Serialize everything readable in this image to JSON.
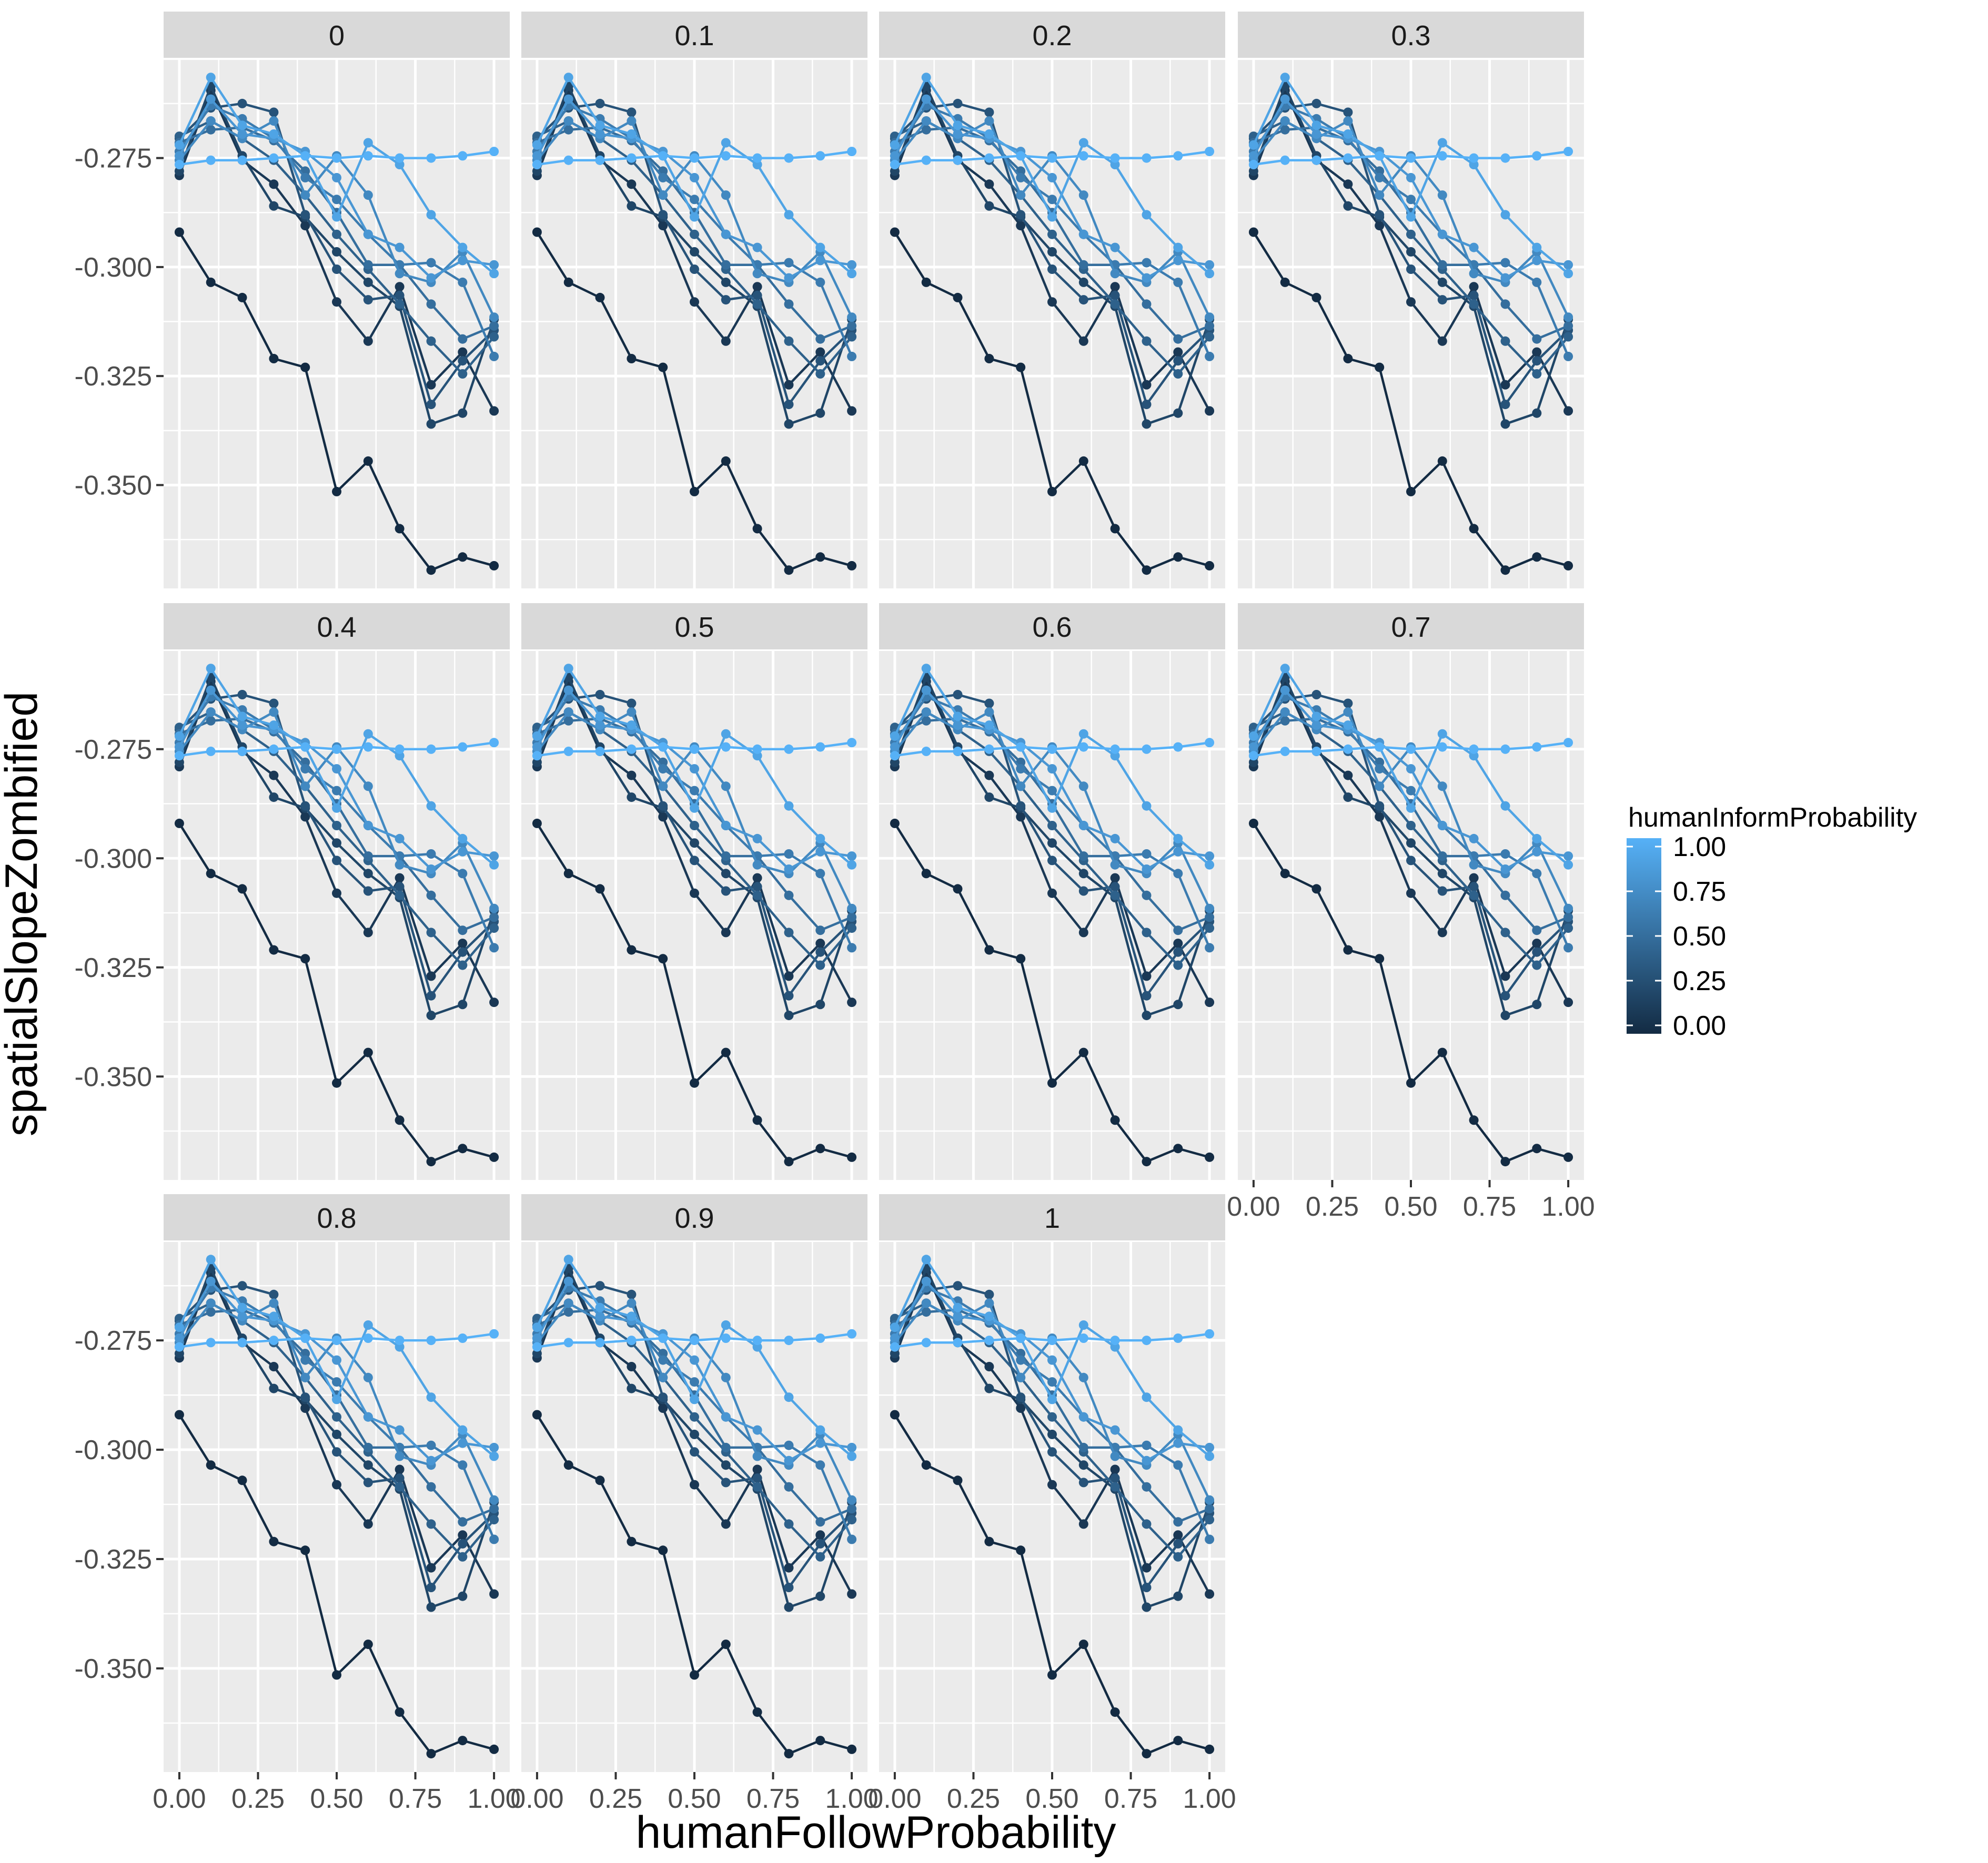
{
  "chart_data": {
    "type": "line",
    "facet_variable": "",
    "panels": [
      "0",
      "0.1",
      "0.2",
      "0.3",
      "0.4",
      "0.5",
      "0.6",
      "0.7",
      "0.8",
      "0.9",
      "1"
    ],
    "xlabel": "humanFollowProbability",
    "ylabel": "spatialSlopeZombified",
    "x": [
      0,
      0.1,
      0.2,
      0.3,
      0.4,
      0.5,
      0.6,
      0.7,
      0.8,
      0.9,
      1.0
    ],
    "xticks": [
      "0.00",
      "0.25",
      "0.50",
      "0.75",
      "1.00"
    ],
    "xtick_values": [
      0,
      0.25,
      0.5,
      0.75,
      1.0
    ],
    "xlim": [
      -0.05,
      1.05
    ],
    "yticks": [
      "-0.275",
      "-0.300",
      "-0.325",
      "-0.350"
    ],
    "ytick_values": [
      -0.275,
      -0.3,
      -0.325,
      -0.35
    ],
    "ylim": [
      -0.3737,
      -0.2525
    ],
    "grid": true,
    "panel_background": "#ebebeb",
    "strip_background": "#d9d9d9",
    "legend": {
      "title": "humanInformProbability",
      "position": "right",
      "ticks": [
        "1.00",
        "0.75",
        "0.50",
        "0.25",
        "0.00"
      ],
      "tick_values": [
        1.0,
        0.75,
        0.5,
        0.25,
        0.0
      ],
      "color_low": "#132b43",
      "color_high": "#56b1f7"
    },
    "series": [
      {
        "color_value": 0.0,
        "values": [
          -0.292,
          -0.3035,
          -0.307,
          -0.321,
          -0.323,
          -0.3515,
          -0.3445,
          -0.36,
          -0.3695,
          -0.3665,
          -0.3685
        ]
      },
      {
        "color_value": 0.1,
        "values": [
          -0.279,
          -0.2595,
          -0.2755,
          -0.281,
          -0.2905,
          -0.308,
          -0.317,
          -0.3045,
          -0.327,
          -0.3195,
          -0.333
        ]
      },
      {
        "color_value": 0.2,
        "values": [
          -0.278,
          -0.2585,
          -0.2745,
          -0.286,
          -0.2885,
          -0.2965,
          -0.3035,
          -0.309,
          -0.336,
          -0.3335,
          -0.312
        ]
      },
      {
        "color_value": 0.3,
        "values": [
          -0.2705,
          -0.2635,
          -0.2625,
          -0.2645,
          -0.288,
          -0.3005,
          -0.3075,
          -0.3065,
          -0.3315,
          -0.3215,
          -0.3145
        ]
      },
      {
        "color_value": 0.4,
        "values": [
          -0.27,
          -0.2665,
          -0.2705,
          -0.2755,
          -0.2835,
          -0.2925,
          -0.3005,
          -0.3085,
          -0.317,
          -0.3245,
          -0.316
        ]
      },
      {
        "color_value": 0.5,
        "values": [
          -0.2715,
          -0.2685,
          -0.268,
          -0.271,
          -0.278,
          -0.2875,
          -0.2995,
          -0.2995,
          -0.3085,
          -0.3165,
          -0.3135
        ]
      },
      {
        "color_value": 0.6,
        "values": [
          -0.2735,
          -0.263,
          -0.266,
          -0.2705,
          -0.2795,
          -0.2845,
          -0.2925,
          -0.2995,
          -0.299,
          -0.3035,
          -0.3205
        ]
      },
      {
        "color_value": 0.7,
        "values": [
          -0.2755,
          -0.2665,
          -0.2705,
          -0.2665,
          -0.2835,
          -0.2745,
          -0.2835,
          -0.3015,
          -0.3035,
          -0.2965,
          -0.3115
        ]
      },
      {
        "color_value": 0.8,
        "values": [
          -0.2745,
          -0.2615,
          -0.2695,
          -0.2705,
          -0.2735,
          -0.2795,
          -0.2925,
          -0.2955,
          -0.3025,
          -0.2985,
          -0.2995
        ]
      },
      {
        "color_value": 0.9,
        "values": [
          -0.272,
          -0.2565,
          -0.2675,
          -0.2695,
          -0.2745,
          -0.2885,
          -0.2715,
          -0.2765,
          -0.288,
          -0.2955,
          -0.3015
        ]
      },
      {
        "color_value": 1.0,
        "values": [
          -0.2765,
          -0.2755,
          -0.2755,
          -0.275,
          -0.2745,
          -0.275,
          -0.2745,
          -0.275,
          -0.275,
          -0.2745,
          -0.2735
        ]
      }
    ]
  }
}
